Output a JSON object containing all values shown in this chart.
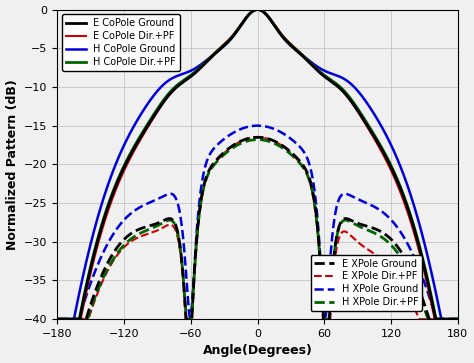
{
  "xlabel": "Angle(Degrees)",
  "ylabel": "Normalized Pattern (dB)",
  "xlim": [
    -180,
    180
  ],
  "ylim": [
    -40,
    0
  ],
  "xticks": [
    -180,
    -120,
    -60,
    0,
    60,
    120,
    180
  ],
  "yticks": [
    0,
    -5,
    -10,
    -15,
    -20,
    -25,
    -30,
    -35,
    -40
  ],
  "figsize": [
    4.74,
    3.63
  ],
  "dpi": 100,
  "legend1_entries": [
    "E CoPole Ground",
    "E CoPole Dir.+PF",
    "H CoPole Ground",
    "H CoPole Dir.+PF"
  ],
  "legend1_colors": [
    "#000000",
    "#cc0000",
    "#0000dd",
    "#006600"
  ],
  "legend2_entries": [
    "E XPole Ground",
    "E XPole Dir.+PF",
    "H XPole Ground",
    "H XPole Dir.+PF"
  ],
  "legend2_colors": [
    "#000000",
    "#cc0000",
    "#0000dd",
    "#006600"
  ],
  "copole_lw": [
    2.0,
    1.5,
    1.8,
    2.0
  ],
  "xpole_lw": [
    2.0,
    1.5,
    1.8,
    2.0
  ],
  "grid_color": "#bbbbbb",
  "grid_lw": 0.5,
  "tick_labelsize": 8,
  "axis_labelsize": 9,
  "legend_fontsize": 7
}
